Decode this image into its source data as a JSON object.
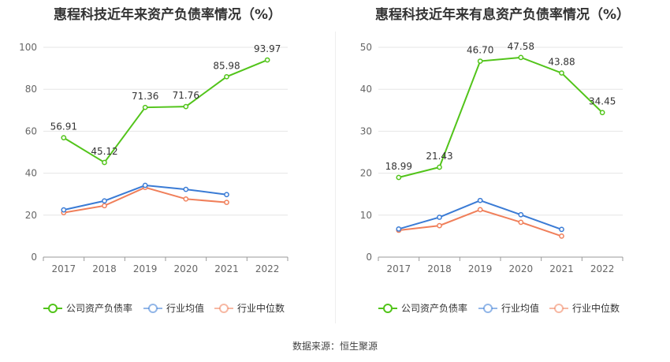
{
  "source": "数据来源：恒生聚源",
  "colors": {
    "company": "#52c41a",
    "industry_avg": "#3a7bd5",
    "industry_median": "#f07f5a"
  },
  "chart_data": [
    {
      "type": "line",
      "title": "惠程科技近年来资产负债率情况（%）",
      "categories": [
        "2017",
        "2018",
        "2019",
        "2020",
        "2021",
        "2022"
      ],
      "ylim": [
        0,
        100
      ],
      "yticks": [
        0,
        20,
        40,
        60,
        80,
        100
      ],
      "grid": true,
      "legend": "bottom",
      "series": [
        {
          "name": "公司资产负债率",
          "values": [
            56.91,
            45.12,
            71.36,
            71.76,
            85.98,
            93.97
          ],
          "labels": [
            "56.91",
            "45.12",
            "71.36",
            "71.76",
            "85.98",
            "93.97"
          ]
        },
        {
          "name": "行业均值",
          "values": [
            22.5,
            26.8,
            34.2,
            32.3,
            29.8,
            null
          ]
        },
        {
          "name": "行业中位数",
          "values": [
            21.2,
            24.5,
            33.2,
            27.7,
            26.1,
            null
          ]
        }
      ]
    },
    {
      "type": "line",
      "title": "惠程科技近年来有息资产负债率情况（%）",
      "categories": [
        "2017",
        "2018",
        "2019",
        "2020",
        "2021",
        "2022"
      ],
      "ylim": [
        0,
        50
      ],
      "yticks": [
        0,
        10,
        20,
        30,
        40,
        50
      ],
      "grid": true,
      "legend": "bottom",
      "series": [
        {
          "name": "公司资产负债率",
          "values": [
            18.99,
            21.43,
            46.7,
            47.58,
            43.88,
            34.45
          ],
          "labels": [
            "18.99",
            "21.43",
            "46.70",
            "47.58",
            "43.88",
            "34.45"
          ]
        },
        {
          "name": "行业均值",
          "values": [
            6.7,
            9.5,
            13.5,
            10.1,
            6.6,
            null
          ]
        },
        {
          "name": "行业中位数",
          "values": [
            6.4,
            7.5,
            11.3,
            8.3,
            5.0,
            null
          ]
        }
      ]
    }
  ]
}
